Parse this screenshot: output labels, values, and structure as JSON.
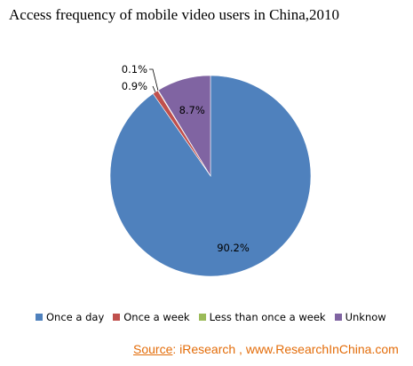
{
  "chart_data": {
    "type": "pie",
    "title": "Access frequency of mobile video users in China,2010",
    "categories": [
      "Once a day",
      "Once a week",
      "Less than once a week",
      "Unknow"
    ],
    "values": [
      90.2,
      0.9,
      0.1,
      8.7
    ],
    "value_labels": [
      "90.2%",
      "0.9%",
      "0.1%",
      "8.7%"
    ],
    "colors": [
      "#4f81bd",
      "#c0504d",
      "#9bbb59",
      "#8064a2"
    ],
    "legend_position": "bottom"
  },
  "source": {
    "label": "Source",
    "separator": ":",
    "text": " iResearch , www.ResearchInChina.com"
  }
}
